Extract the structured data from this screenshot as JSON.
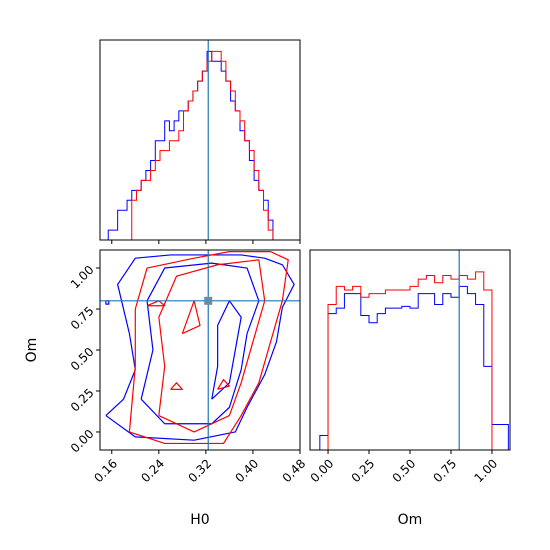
{
  "chart_data": [
    {
      "panel": "H0-marginal",
      "type": "step-histogram",
      "xlim": [
        0.14,
        0.48
      ],
      "truth": 0.324,
      "xticks": [
        "0.16",
        "0.24",
        "0.32",
        "0.40",
        "0.48"
      ],
      "series": [
        {
          "color": "#0000ff",
          "edges": [
            0.146,
            0.154,
            0.162,
            0.17,
            0.178,
            0.186,
            0.194,
            0.202,
            0.21,
            0.218,
            0.226,
            0.234,
            0.242,
            0.25,
            0.258,
            0.266,
            0.274,
            0.282,
            0.29,
            0.298,
            0.306,
            0.314,
            0.322,
            0.33,
            0.338,
            0.346,
            0.354,
            0.362,
            0.37,
            0.378,
            0.386,
            0.394,
            0.402,
            0.41,
            0.418,
            0.426,
            0.434,
            0.442,
            0.45,
            0.458
          ],
          "counts": [
            0,
            1,
            1,
            3,
            3,
            4,
            5,
            5,
            6,
            7,
            8,
            10,
            10,
            12,
            11,
            12,
            13,
            13,
            14,
            15,
            16,
            17,
            19,
            18,
            18,
            17,
            16,
            14,
            13,
            11,
            10,
            8,
            6,
            5,
            4,
            2,
            0,
            0,
            0
          ]
        },
        {
          "color": "#ff0000",
          "edges": [
            0.194,
            0.202,
            0.21,
            0.218,
            0.226,
            0.234,
            0.242,
            0.25,
            0.258,
            0.266,
            0.274,
            0.282,
            0.29,
            0.298,
            0.306,
            0.314,
            0.322,
            0.33,
            0.338,
            0.346,
            0.354,
            0.362,
            0.37,
            0.378,
            0.386,
            0.394,
            0.402,
            0.41,
            0.418,
            0.426,
            0.434,
            0.442,
            0.45,
            0.458
          ],
          "counts": [
            4,
            5,
            6,
            6,
            7,
            8,
            9,
            9,
            10,
            10,
            11,
            13,
            14,
            15,
            16,
            17,
            18,
            19,
            19,
            18,
            16,
            15,
            13,
            12,
            10,
            9,
            7,
            5,
            3,
            1,
            0,
            0,
            0
          ]
        }
      ]
    },
    {
      "panel": "Om-marginal",
      "type": "step-histogram",
      "xlim": [
        -0.11,
        1.11
      ],
      "truth": 0.8,
      "xlabel": "Om",
      "xticks": [
        "0.00",
        "0.25",
        "0.50",
        "0.75",
        "1.00"
      ],
      "series": [
        {
          "color": "#0000ff",
          "edges": [
            -0.05,
            0.0,
            0.05,
            0.1,
            0.15,
            0.2,
            0.25,
            0.3,
            0.35,
            0.4,
            0.45,
            0.5,
            0.55,
            0.6,
            0.65,
            0.7,
            0.75,
            0.8,
            0.85,
            0.9,
            0.95,
            1.0,
            1.05,
            1.1
          ],
          "counts": [
            0.08,
            0.75,
            0.78,
            0.86,
            0.86,
            0.74,
            0.7,
            0.75,
            0.78,
            0.78,
            0.79,
            0.78,
            0.86,
            0.86,
            0.8,
            0.86,
            0.84,
            0.9,
            0.86,
            0.8,
            0.46,
            0.14,
            0.14
          ]
        },
        {
          "color": "#ff0000",
          "edges": [
            0.0,
            0.05,
            0.1,
            0.15,
            0.2,
            0.25,
            0.3,
            0.35,
            0.4,
            0.45,
            0.5,
            0.55,
            0.6,
            0.65,
            0.7,
            0.75,
            0.8,
            0.85,
            0.9,
            0.95,
            1.0
          ],
          "counts": [
            0.8,
            0.9,
            0.88,
            0.9,
            0.84,
            0.86,
            0.86,
            0.88,
            0.88,
            0.88,
            0.9,
            0.94,
            0.96,
            0.92,
            0.96,
            0.94,
            0.96,
            0.94,
            0.98,
            0.88
          ]
        }
      ]
    },
    {
      "panel": "H0-Om-2D",
      "type": "contour",
      "xlim": [
        0.14,
        0.48
      ],
      "ylim": [
        -0.11,
        1.11
      ],
      "xlabel": "H0",
      "ylabel": "Om",
      "truth": [
        0.324,
        0.8
      ],
      "xticks": [
        "0.16",
        "0.24",
        "0.32",
        "0.40",
        "0.48"
      ],
      "yticks": [
        "0.00",
        "0.25",
        "0.50",
        "0.75",
        "1.00"
      ],
      "series": [
        {
          "color": "#0000ff",
          "levels": [
            [
              [
                0.15,
                0.8
              ],
              [
                0.155,
                0.8
              ],
              [
                0.155,
                0.78
              ],
              [
                0.15,
                0.78
              ],
              [
                0.15,
                0.8
              ]
            ],
            [
              [
                0.15,
                0.1
              ],
              [
                0.18,
                0.2
              ],
              [
                0.2,
                0.38
              ],
              [
                0.19,
                0.6
              ],
              [
                0.17,
                0.9
              ],
              [
                0.2,
                1.06
              ],
              [
                0.26,
                1.08
              ],
              [
                0.33,
                1.08
              ],
              [
                0.38,
                1.08
              ],
              [
                0.42,
                1.06
              ],
              [
                0.45,
                1.02
              ],
              [
                0.47,
                0.9
              ],
              [
                0.45,
                0.76
              ],
              [
                0.44,
                0.55
              ],
              [
                0.42,
                0.35
              ],
              [
                0.39,
                0.15
              ],
              [
                0.37,
                0.0
              ],
              [
                0.3,
                -0.05
              ],
              [
                0.2,
                -0.03
              ],
              [
                0.15,
                0.1
              ]
            ],
            [
              [
                0.21,
                0.2
              ],
              [
                0.23,
                0.5
              ],
              [
                0.22,
                0.8
              ],
              [
                0.25,
                1.0
              ],
              [
                0.33,
                1.03
              ],
              [
                0.39,
                1.0
              ],
              [
                0.41,
                0.8
              ],
              [
                0.39,
                0.6
              ],
              [
                0.38,
                0.38
              ],
              [
                0.36,
                0.15
              ],
              [
                0.33,
                0.05
              ],
              [
                0.25,
                0.05
              ],
              [
                0.21,
                0.2
              ]
            ],
            [
              [
                0.33,
                0.2
              ],
              [
                0.34,
                0.4
              ],
              [
                0.34,
                0.65
              ],
              [
                0.36,
                0.8
              ],
              [
                0.38,
                0.7
              ],
              [
                0.37,
                0.5
              ],
              [
                0.36,
                0.3
              ],
              [
                0.33,
                0.2
              ]
            ]
          ]
        },
        {
          "color": "#ff0000",
          "levels": [
            [
              [
                0.19,
                0.0
              ],
              [
                0.2,
                0.4
              ],
              [
                0.2,
                0.75
              ],
              [
                0.22,
                1.0
              ],
              [
                0.3,
                1.06
              ],
              [
                0.36,
                1.1
              ],
              [
                0.43,
                1.1
              ],
              [
                0.46,
                1.05
              ],
              [
                0.45,
                0.8
              ],
              [
                0.43,
                0.55
              ],
              [
                0.41,
                0.3
              ],
              [
                0.38,
                0.1
              ],
              [
                0.35,
                -0.07
              ],
              [
                0.25,
                -0.07
              ],
              [
                0.19,
                0.0
              ]
            ],
            [
              [
                0.24,
                0.1
              ],
              [
                0.25,
                0.4
              ],
              [
                0.24,
                0.7
              ],
              [
                0.27,
                0.95
              ],
              [
                0.34,
                1.02
              ],
              [
                0.41,
                1.05
              ],
              [
                0.42,
                0.8
              ],
              [
                0.4,
                0.55
              ],
              [
                0.38,
                0.3
              ],
              [
                0.36,
                0.1
              ],
              [
                0.3,
                0.0
              ],
              [
                0.24,
                0.1
              ]
            ],
            [
              [
                0.28,
                0.6
              ],
              [
                0.3,
                0.8
              ],
              [
                0.31,
                0.65
              ],
              [
                0.28,
                0.6
              ]
            ],
            [
              [
                0.22,
                0.77
              ],
              [
                0.24,
                0.8
              ],
              [
                0.25,
                0.77
              ],
              [
                0.22,
                0.77
              ]
            ],
            [
              [
                0.34,
                0.26
              ],
              [
                0.35,
                0.32
              ],
              [
                0.36,
                0.28
              ],
              [
                0.34,
                0.26
              ]
            ],
            [
              [
                0.26,
                0.26
              ],
              [
                0.27,
                0.3
              ],
              [
                0.28,
                0.26
              ],
              [
                0.26,
                0.26
              ]
            ]
          ]
        }
      ]
    }
  ]
}
